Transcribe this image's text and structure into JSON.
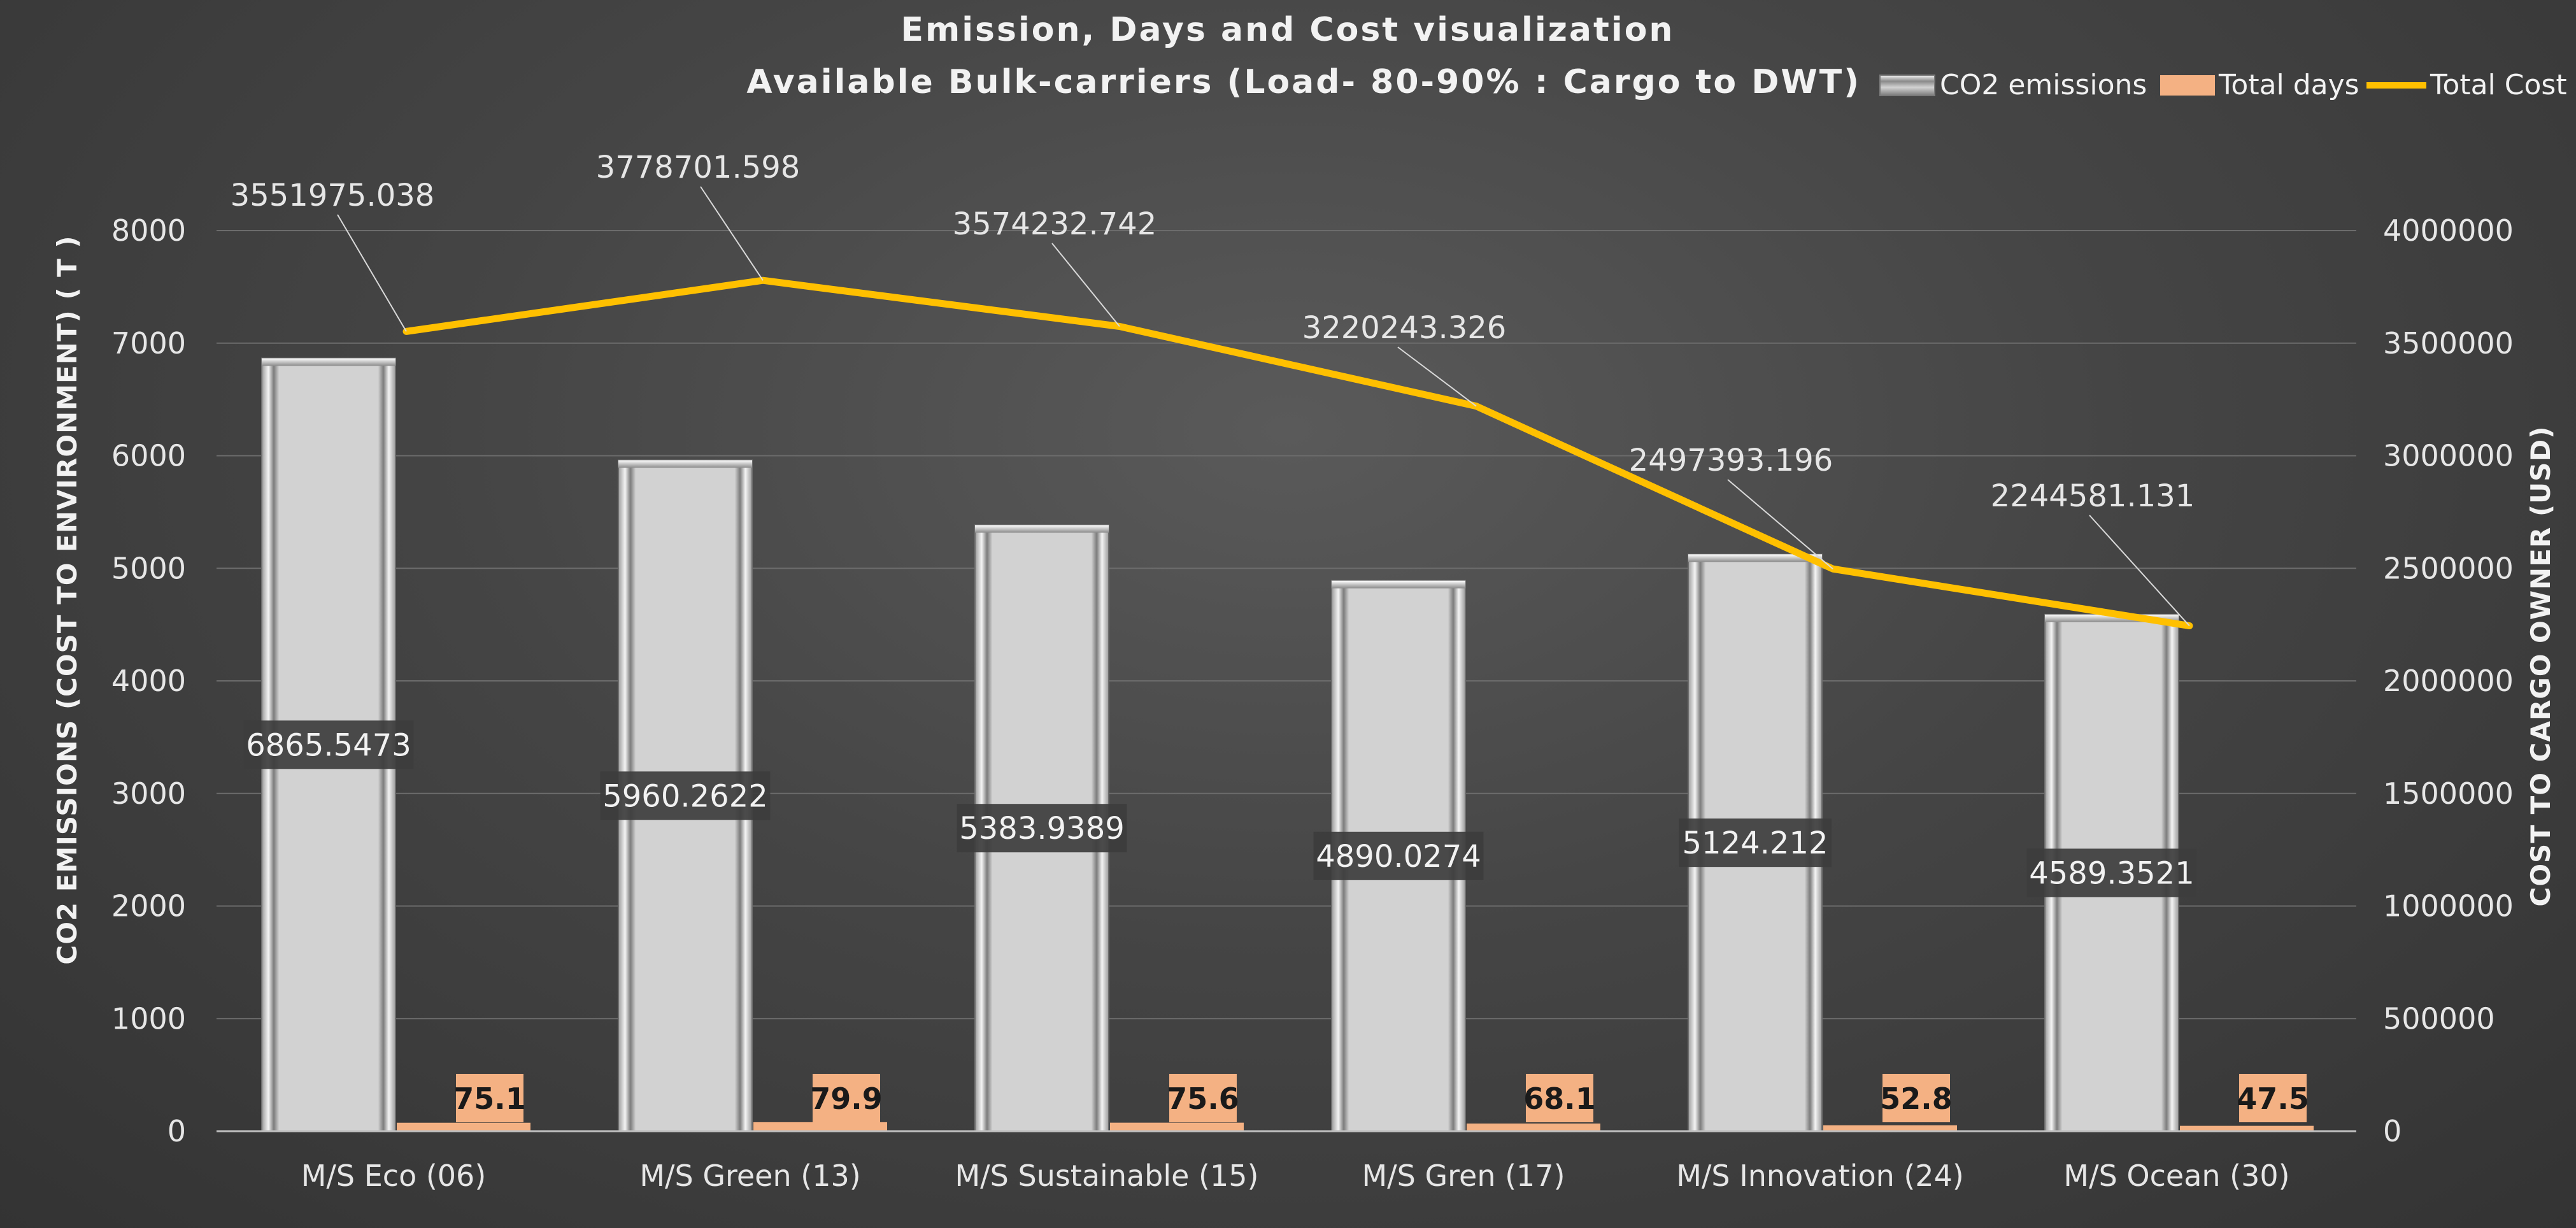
{
  "chart_data": {
    "type": "bar",
    "title": "Emission, Days and Cost visualization",
    "subtitle": "Available Bulk-carriers (Load- 80-90% : Cargo to DWT)",
    "categories": [
      "M/S Eco (06)",
      "M/S Green (13)",
      "M/S Sustainable (15)",
      "M/S Gren (17)",
      "M/S Innovation (24)",
      "M/S Ocean (30)"
    ],
    "series": [
      {
        "name": "CO2 emissions",
        "kind": "bar",
        "axis": "left",
        "values": [
          6865.5473,
          5960.2622,
          5383.9389,
          4890.0274,
          5124.212,
          4589.3521
        ],
        "labels": [
          "6865.5473",
          "5960.2622",
          "5383.9389",
          "4890.0274",
          "5124.212",
          "4589.3521"
        ],
        "color": "#d2d2d2"
      },
      {
        "name": "Total days",
        "kind": "bar",
        "axis": "left",
        "values": [
          75.1,
          79.9,
          75.6,
          68.1,
          52.8,
          47.5
        ],
        "labels": [
          "75.1",
          "79.9",
          "75.6",
          "68.1",
          "52.8",
          "47.5"
        ],
        "color": "#f4b183"
      },
      {
        "name": "Total Cost",
        "kind": "line",
        "axis": "right",
        "values": [
          3551975.038,
          3778701.598,
          3574232.742,
          3220243.326,
          2497393.196,
          2244581.131
        ],
        "labels": [
          "3551975.038",
          "3778701.598",
          "3574232.742",
          "3220243.326",
          "2497393.196",
          "2244581.131"
        ],
        "color": "#ffc000"
      }
    ],
    "y_left": {
      "label": "CO2 EMISSIONS (COST TO ENVIRONMENT)  ( T )",
      "min": 0,
      "max": 8000,
      "ticks": [
        "0",
        "1000",
        "2000",
        "3000",
        "4000",
        "5000",
        "6000",
        "7000",
        "8000"
      ]
    },
    "y_right": {
      "label": "COST TO  CARGO  OWNER (USD)",
      "min": 0,
      "max": 4000000,
      "ticks": [
        "0",
        "500000",
        "1000000",
        "1500000",
        "2000000",
        "2500000",
        "3000000",
        "3500000",
        "4000000"
      ]
    },
    "grid": true,
    "legend_position": "top-right"
  }
}
